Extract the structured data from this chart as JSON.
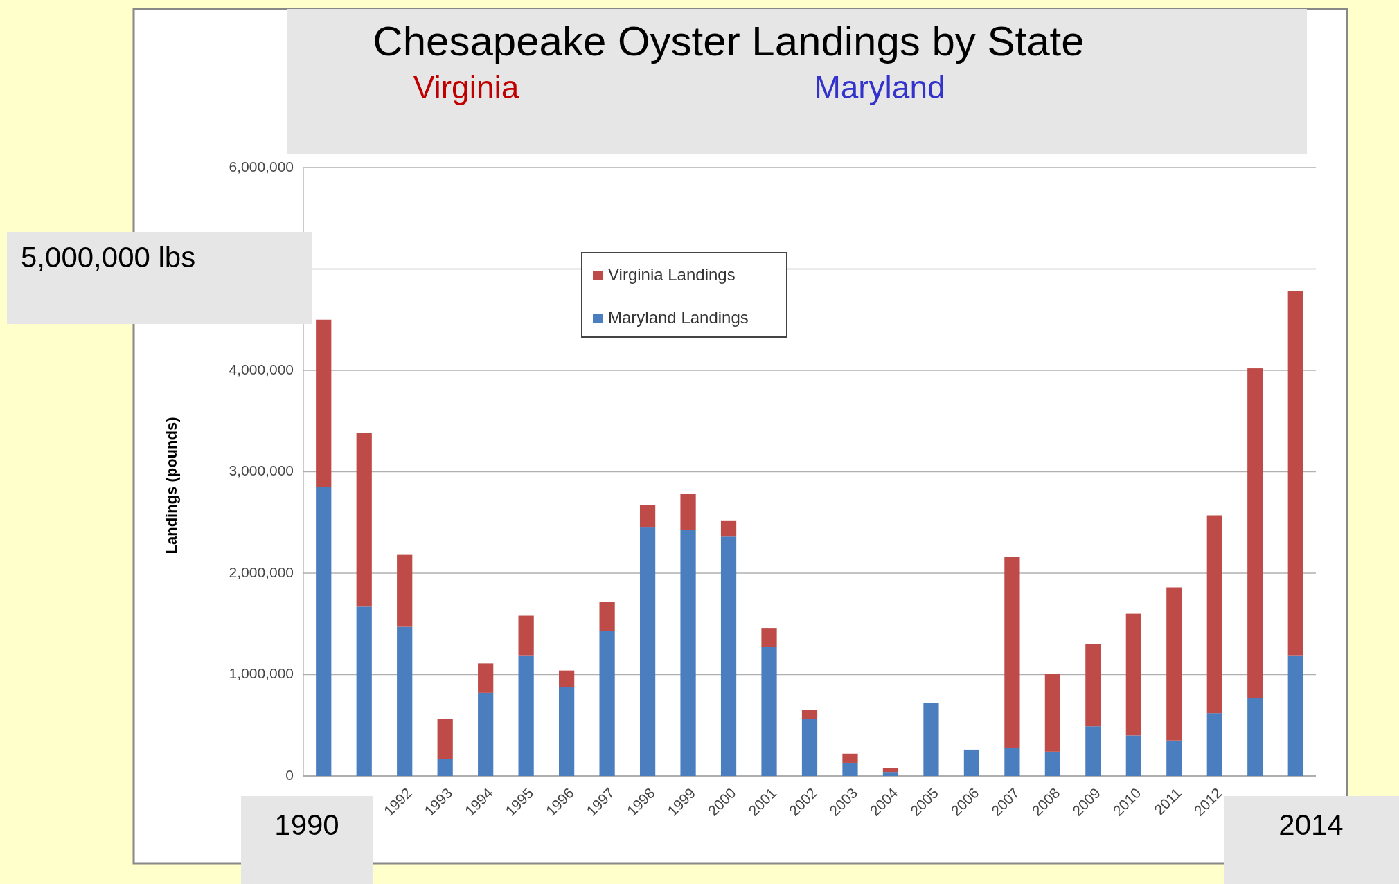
{
  "chart_data": {
    "type": "bar",
    "title": "Chesapeake Oyster Landings by State",
    "ylabel": "Landings (pounds)",
    "stacked": true,
    "legend": "top",
    "grid": "y",
    "annotations": [
      "Virginia",
      "Maryland",
      "5,000,000 lbs",
      "1990",
      "2014"
    ],
    "categories": [
      null,
      null,
      "1992",
      "1993",
      "1994",
      "1995",
      "1996",
      "1997",
      "1998",
      "1999",
      "2000",
      "2001",
      "2002",
      "2003",
      "2004",
      "2005",
      "2006",
      "2007",
      "2008",
      "2009",
      "2010",
      "2011",
      "2012",
      null,
      null
    ],
    "ylim": [
      0,
      6000000
    ],
    "yticks": [
      0,
      {
        "value": 1000000,
        "label": "1,000,000"
      },
      {
        "value": 2000000,
        "label": "2,000,000"
      },
      {
        "value": 3000000,
        "label": "3,000,000"
      },
      {
        "value": 4000000,
        "label": "4,000,000"
      },
      {
        "value": 5000000,
        "label": null
      },
      {
        "value": 6000000,
        "label": "6,000,000"
      }
    ],
    "series": [
      {
        "name": "Maryland Landings",
        "color": "#4a7ebf",
        "values": [
          2850000,
          1670000,
          1470000,
          170000,
          820000,
          1190000,
          880000,
          1430000,
          2450000,
          2430000,
          2360000,
          1270000,
          560000,
          130000,
          40000,
          720000,
          260000,
          280000,
          240000,
          490000,
          400000,
          350000,
          620000,
          770000,
          1190000
        ]
      },
      {
        "name": "Virginia Landings",
        "color": "#be4b48",
        "values": [
          1650000,
          1710000,
          710000,
          390000,
          290000,
          390000,
          160000,
          290000,
          220000,
          350000,
          160000,
          190000,
          90000,
          90000,
          40000,
          0,
          0,
          1880000,
          770000,
          810000,
          1200000,
          1510000,
          1950000,
          3250000,
          3590000
        ]
      }
    ]
  }
}
